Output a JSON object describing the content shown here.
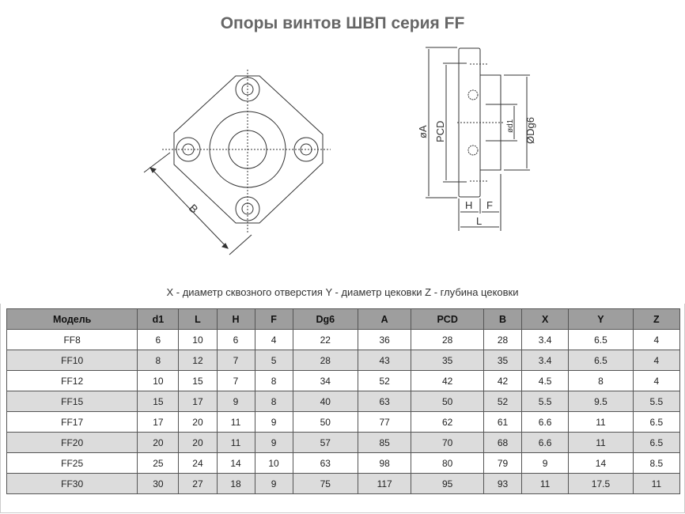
{
  "title": "Опоры винтов ШВП серия FF",
  "diagram": {
    "front_labels": {
      "b": "B"
    },
    "side_labels": {
      "a": "øA",
      "pcd": "PCD",
      "d1": "ød1",
      "dg6": "ØDg6",
      "h": "H",
      "f": "F",
      "l": "L"
    }
  },
  "caption": "X - диаметр сквозного отверстия Y - диаметр цековки Z - глубина цековки",
  "table": {
    "headers": [
      "Модель",
      "d1",
      "L",
      "H",
      "F",
      "Dg6",
      "A",
      "PCD",
      "B",
      "X",
      "Y",
      "Z"
    ],
    "rows": [
      [
        "FF8",
        "6",
        "10",
        "6",
        "4",
        "22",
        "36",
        "28",
        "28",
        "3.4",
        "6.5",
        "4"
      ],
      [
        "FF10",
        "8",
        "12",
        "7",
        "5",
        "28",
        "43",
        "35",
        "35",
        "3.4",
        "6.5",
        "4"
      ],
      [
        "FF12",
        "10",
        "15",
        "7",
        "8",
        "34",
        "52",
        "42",
        "42",
        "4.5",
        "8",
        "4"
      ],
      [
        "FF15",
        "15",
        "17",
        "9",
        "8",
        "40",
        "63",
        "50",
        "52",
        "5.5",
        "9.5",
        "5.5"
      ],
      [
        "FF17",
        "17",
        "20",
        "11",
        "9",
        "50",
        "77",
        "62",
        "61",
        "6.6",
        "11",
        "6.5"
      ],
      [
        "FF20",
        "20",
        "20",
        "11",
        "9",
        "57",
        "85",
        "70",
        "68",
        "6.6",
        "11",
        "6.5"
      ],
      [
        "FF25",
        "25",
        "24",
        "14",
        "10",
        "63",
        "98",
        "80",
        "79",
        "9",
        "14",
        "8.5"
      ],
      [
        "FF30",
        "30",
        "27",
        "18",
        "9",
        "75",
        "117",
        "95",
        "93",
        "11",
        "17.5",
        "11"
      ]
    ]
  }
}
